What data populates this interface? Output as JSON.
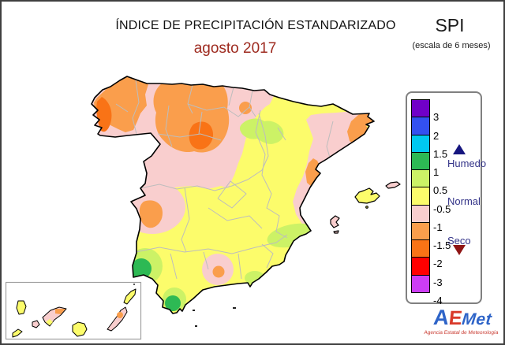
{
  "header": {
    "title": "ÍNDICE DE PRECIPITACIÓN ESTANDARIZADO",
    "subtitle": "agosto 2017",
    "index_name": "SPI",
    "scale_note": "(escala de 6 meses)"
  },
  "legend": {
    "cells": [
      {
        "color": "#7000C8",
        "tick": "3"
      },
      {
        "color": "#3350F0",
        "tick": "2"
      },
      {
        "color": "#00C8F0",
        "tick": "1.5"
      },
      {
        "color": "#2DB954",
        "tick": "1"
      },
      {
        "color": "#CCF266",
        "tick": "0.5"
      },
      {
        "color": "#FCFC6B",
        "tick": "-0.5"
      },
      {
        "color": "#F9CECE",
        "tick": "-1"
      },
      {
        "color": "#FA9E4C",
        "tick": "-1.5"
      },
      {
        "color": "#F97316",
        "tick": "-2"
      },
      {
        "color": "#FF0000",
        "tick": "-3"
      },
      {
        "color": "#CC3DF5",
        "tick": "-4"
      }
    ],
    "wet_label": "Humedo",
    "normal_label": "Normal",
    "dry_label": "Seco",
    "wet_arrow_color": "#16167F",
    "dry_arrow_color": "#8F1515",
    "label_color": "#333388"
  },
  "map_colors": {
    "sea": "#FFFFFF",
    "normal": "#FCFC6B",
    "slightly_dry": "#F9CECE",
    "dry": "#FA9E4C",
    "very_dry": "#F97316",
    "slightly_wet": "#CCF266",
    "wet": "#2DB954",
    "coast": "#000000",
    "province_border": "#BDBDBD",
    "inset_border": "#A0A0A0"
  },
  "logo": {
    "letter_a": "A",
    "letter_e": "E",
    "letter_met": "Met",
    "tagline": "Agencia Estatal de Meteorología"
  }
}
